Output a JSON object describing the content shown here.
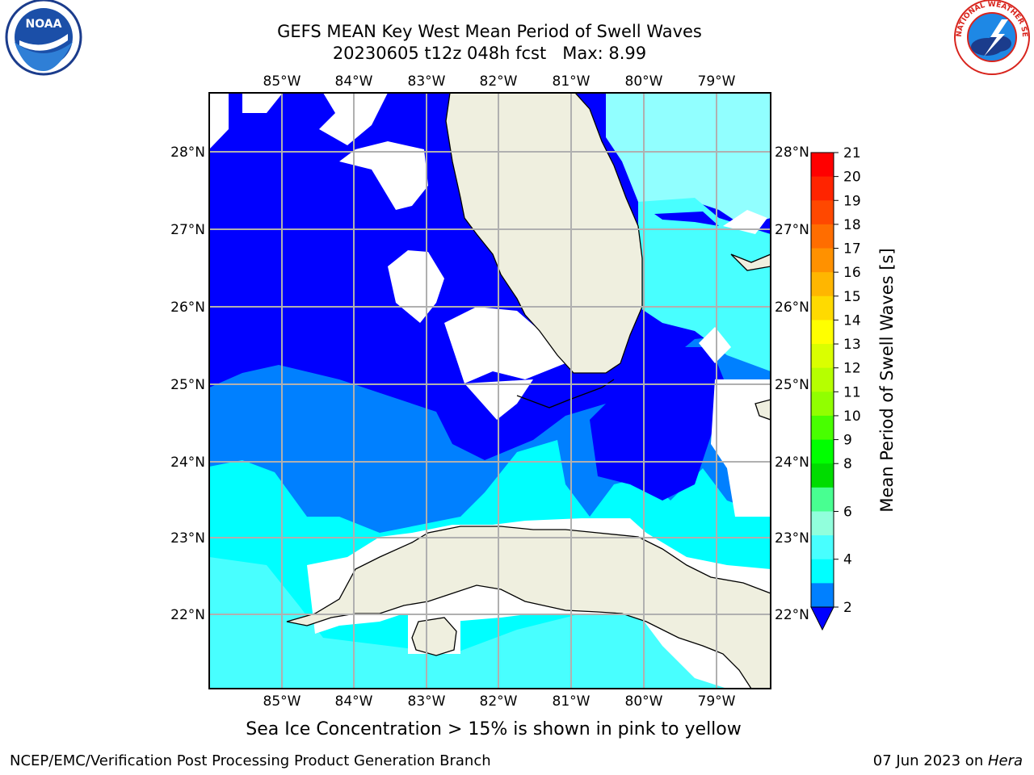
{
  "title": {
    "line1": "GEFS MEAN Key West Mean Period of Swell Waves",
    "line2": "20230605 t12z 048h fcst   Max: 8.99"
  },
  "axes": {
    "lon_labels": [
      "85°W",
      "84°W",
      "83°W",
      "82°W",
      "81°W",
      "80°W",
      "79°W"
    ],
    "lat_labels": [
      "28°N",
      "27°N",
      "26°N",
      "25°N",
      "24°N",
      "23°N",
      "22°N"
    ]
  },
  "colorbar": {
    "label": "Mean Period of Swell Waves [s]",
    "ticks": [
      "21",
      "20",
      "19",
      "18",
      "17",
      "16",
      "15",
      "14",
      "13",
      "12",
      "11",
      "10",
      "9",
      "8",
      "6",
      "4",
      "2"
    ],
    "colors_top_to_bottom": [
      "#ff0000",
      "#ff2400",
      "#ff4800",
      "#ff6d00",
      "#ff9100",
      "#ffb600",
      "#ffda00",
      "#ffff00",
      "#daff00",
      "#b6ff00",
      "#91ff00",
      "#48ff00",
      "#00ff00",
      "#00dc00",
      "#48ff91",
      "#91ffdc",
      "#48ffff",
      "#00ffff",
      "#0080ff"
    ],
    "extend_color": "#0000ff"
  },
  "palette": {
    "deep": "#0000ff",
    "mid": "#0080ff",
    "light": "#00ffff",
    "pale": "#48ffff",
    "palest": "#91ffff",
    "land": "#efefdf",
    "grid": "#b0b0b0"
  },
  "logos": {
    "left": "noaa-logo",
    "left_text": "NOAA",
    "right": "nws-logo",
    "right_text": "NATIONAL WEATHER SERVICE"
  },
  "footer": {
    "note": "Sea Ice Concentration > 15% is shown in pink to yellow",
    "credit": "NCEP/EMC/Verification Post Processing Product Generation Branch",
    "date": "07 Jun 2023 on ",
    "host": "Hera"
  }
}
